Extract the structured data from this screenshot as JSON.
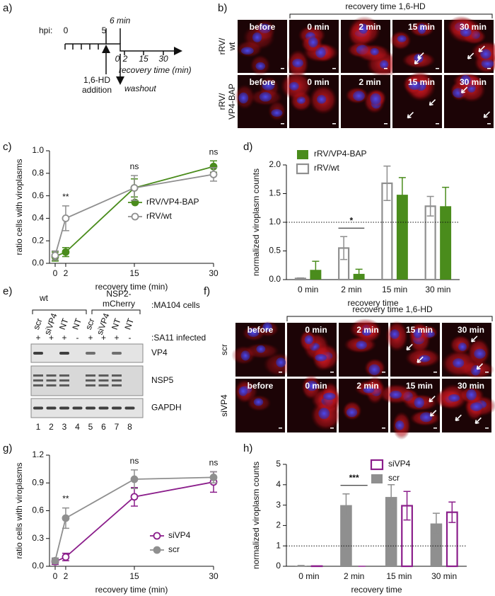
{
  "panel_labels": [
    "a)",
    "b)",
    "c)",
    "d)",
    "e)",
    "f)",
    "g)",
    "h)"
  ],
  "timeline": {
    "hpi": "hpi:",
    "ticks": [
      "0",
      "5"
    ],
    "duration": "6 min",
    "recovery_ticks": [
      "0",
      "2",
      "15",
      "30"
    ],
    "recovery_label": "recovery time (min)",
    "addition": [
      "1,6-HD",
      "addition"
    ],
    "washout": "washout"
  },
  "micrographs_b": {
    "header": "recovery time 1,6-HD",
    "rows": [
      {
        "label": [
          "rRV/",
          "wt"
        ],
        "panels": [
          "before",
          "0 min",
          "2 min",
          "15 min",
          "30 min"
        ]
      },
      {
        "label": [
          "rRV/",
          "VP4-BAP"
        ],
        "panels": [
          "before",
          "0 min",
          "2 min",
          "15 min",
          "30 min"
        ]
      }
    ]
  },
  "blot": {
    "groups": [
      [
        "wt"
      ],
      [
        "NSP2-",
        "mCherry"
      ]
    ],
    "cell_line": ":MA104 cells",
    "lanes": [
      "scr",
      "siVP4",
      "NT",
      "NT",
      "scr",
      "siVP4",
      "NT",
      "NT"
    ],
    "infection": [
      "+",
      "+",
      "+",
      "-",
      "+",
      "+",
      "+",
      "-"
    ],
    "infection_label": ":SA11 infected",
    "bands": [
      "VP4",
      "NSP5",
      "GAPDH"
    ],
    "lane_numbers": [
      "1",
      "2",
      "3",
      "4",
      "5",
      "6",
      "7",
      "8"
    ]
  },
  "micrographs_f": {
    "header": "recovery time 1,6-HD",
    "rows": [
      {
        "label": [
          "scr"
        ],
        "panels": [
          "before",
          "0 min",
          "2 min",
          "15 min",
          "30 min"
        ]
      },
      {
        "label": [
          "siVP4"
        ],
        "panels": [
          "before",
          "0 min",
          "2 min",
          "15 min",
          "30 min"
        ]
      }
    ]
  },
  "chart_data": [
    {
      "type": "line",
      "xlabel": "recovery time (min)",
      "ylabel": "ratio cells with viroplasms",
      "x": [
        0,
        2,
        15,
        30
      ],
      "xlim": [
        0,
        30
      ],
      "xticks": [
        0,
        2,
        15,
        30
      ],
      "ylim": [
        0,
        1
      ],
      "yticks": [
        {
          "value": 0,
          "label": "0.0"
        },
        {
          "value": 0.2,
          "label": "0.2"
        },
        {
          "value": 0.4,
          "label": "0.4"
        },
        {
          "value": 0.6,
          "label": "0.6"
        },
        {
          "value": 0.8,
          "label": "0.8"
        },
        {
          "value": 1,
          "label": "1.0"
        }
      ],
      "legend": "right",
      "series": [
        {
          "name": "rRV/VP4-BAP",
          "color": "#4a8c1c",
          "marker": "filled",
          "values": [
            0.06,
            0.1,
            0.67,
            0.86
          ],
          "errors": [
            0.04,
            0.04,
            0.08,
            0.05
          ]
        },
        {
          "name": "rRV/wt",
          "color": "#8f8f8f",
          "marker": "open",
          "values": [
            0.07,
            0.4,
            0.67,
            0.79
          ],
          "errors": [
            0.04,
            0.11,
            0.11,
            0.06
          ]
        }
      ],
      "annotations": [
        {
          "text": "**",
          "x": 2
        },
        {
          "text": "ns",
          "x": 15
        },
        {
          "text": "ns",
          "x": 30
        }
      ]
    },
    {
      "type": "bar",
      "xlabel": "recovery time",
      "ylabel": "normalized viroplasm counts",
      "categories": [
        "0 min",
        "2 min",
        "15 min",
        "30 min"
      ],
      "ylim": [
        0,
        2
      ],
      "yticks": [
        {
          "value": 0,
          "label": "0.0"
        },
        {
          "value": 0.5,
          "label": "0.5"
        },
        {
          "value": 1,
          "label": "1.0"
        },
        {
          "value": 1.5,
          "label": "1.5"
        },
        {
          "value": 2,
          "label": "2.0"
        }
      ],
      "reference_line": 1,
      "legend_reversed": true,
      "series": [
        {
          "name": "rRV/wt",
          "color": "#8f8f8f",
          "style": "open",
          "values": [
            0.02,
            0.55,
            1.68,
            1.28
          ],
          "errors": [
            0.01,
            0.2,
            0.3,
            0.17
          ]
        },
        {
          "name": "rRV/VP4-BAP",
          "color": "#4a8c1c",
          "style": "filled",
          "values": [
            0.17,
            0.1,
            1.48,
            1.28
          ],
          "errors": [
            0.15,
            0.08,
            0.3,
            0.33
          ]
        }
      ],
      "annotations": [
        {
          "text": "*",
          "x": "2 min"
        }
      ]
    },
    {
      "type": "line",
      "xlabel": "recovery time (min)",
      "ylabel": "ratio cells with viroplasms",
      "x": [
        0,
        2,
        15,
        30
      ],
      "xlim": [
        0,
        30
      ],
      "xticks": [
        0,
        2,
        15,
        30
      ],
      "ylim": [
        0,
        1.2
      ],
      "yticks": [
        {
          "value": 0,
          "label": "0.0"
        },
        {
          "value": 0.3,
          "label": "0.3"
        },
        {
          "value": 0.6,
          "label": "0.6"
        },
        {
          "value": 0.9,
          "label": "0.9"
        },
        {
          "value": 1.2,
          "label": "1.2"
        }
      ],
      "legend": "lower right",
      "series": [
        {
          "name": "siVP4",
          "color": "#8b1e8b",
          "marker": "open",
          "values": [
            0.05,
            0.1,
            0.75,
            0.91
          ],
          "errors": [
            0.03,
            0.04,
            0.1,
            0.11
          ]
        },
        {
          "name": "scr",
          "color": "#8f8f8f",
          "marker": "filled",
          "values": [
            0.06,
            0.52,
            0.94,
            0.96
          ],
          "errors": [
            0.03,
            0.11,
            0.1,
            0.06
          ]
        }
      ],
      "annotations": [
        {
          "text": "**",
          "x": 2
        },
        {
          "text": "ns",
          "x": 15
        },
        {
          "text": "ns",
          "x": 30
        }
      ]
    },
    {
      "type": "bar",
      "xlabel": "recovery time",
      "ylabel": "normalized viroplasm counts",
      "categories": [
        "0 min",
        "2 min",
        "15 min",
        "30 min"
      ],
      "ylim": [
        0,
        5
      ],
      "yticks": [
        0,
        1,
        2,
        3,
        4,
        5
      ],
      "reference_line": 1,
      "legend_reversed": true,
      "series": [
        {
          "name": "scr",
          "color": "#8f8f8f",
          "style": "filled",
          "values": [
            0.03,
            3.0,
            3.4,
            2.1
          ],
          "errors": [
            0.01,
            0.55,
            0.6,
            0.5
          ]
        },
        {
          "name": "siVP4",
          "color": "#8b1e8b",
          "style": "open",
          "values": [
            0.01,
            0,
            2.97,
            2.65
          ],
          "errors": [
            0,
            0,
            0.7,
            0.5
          ]
        }
      ],
      "annotations": [
        {
          "text": "***",
          "x": "2 min"
        }
      ]
    }
  ]
}
